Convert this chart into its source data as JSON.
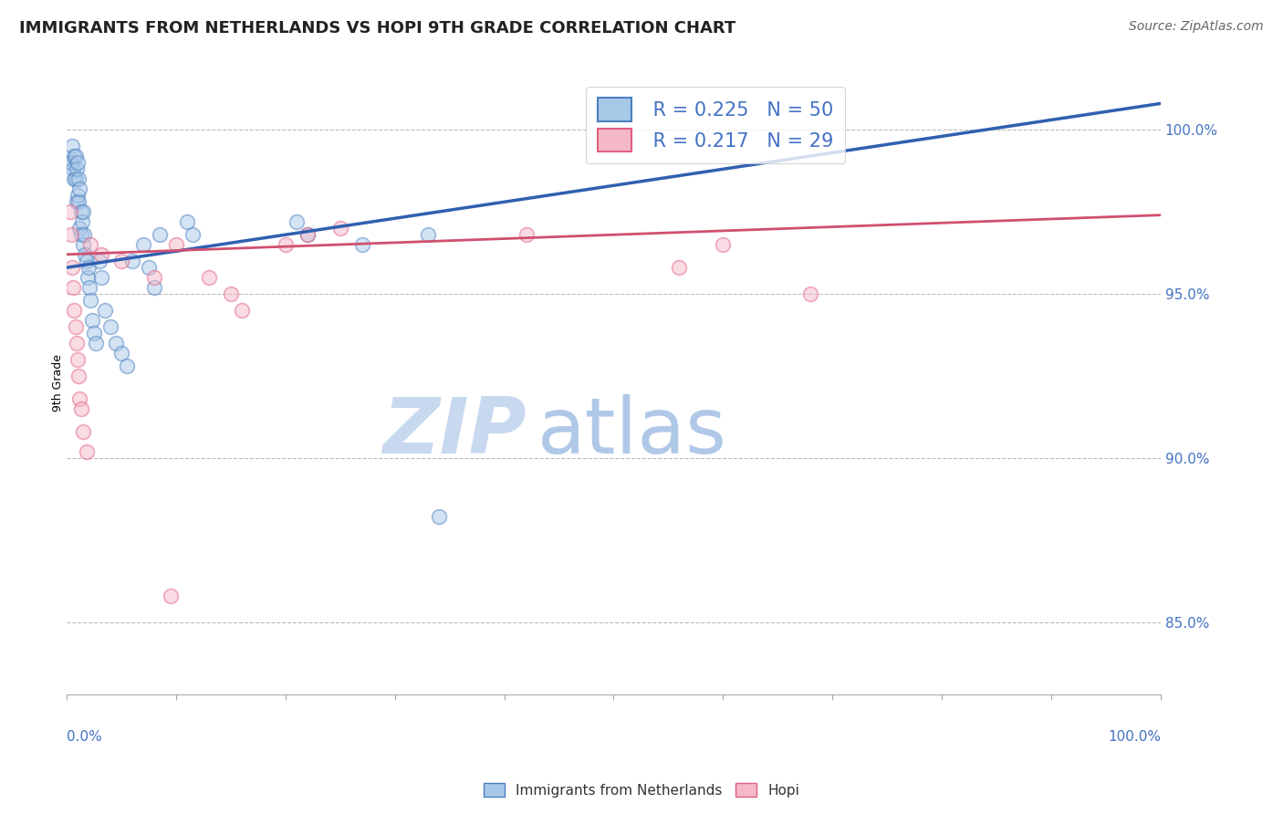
{
  "title": "IMMIGRANTS FROM NETHERLANDS VS HOPI 9TH GRADE CORRELATION CHART",
  "source": "Source: ZipAtlas.com",
  "ylabel": "9th Grade",
  "ylabel_right_labels": [
    "100.0%",
    "95.0%",
    "90.0%",
    "85.0%"
  ],
  "ylabel_right_values": [
    1.0,
    0.95,
    0.9,
    0.85
  ],
  "xmin": 0.0,
  "xmax": 1.0,
  "ymin": 0.828,
  "ymax": 1.018,
  "watermark_zip": "ZIP",
  "watermark_atlas": "atlas",
  "legend_r_blue": "0.225",
  "legend_n_blue": "50",
  "legend_r_pink": "0.217",
  "legend_n_pink": "29",
  "blue_face_color": "#a8c8e8",
  "blue_edge_color": "#4a7fc0",
  "pink_face_color": "#f5b8c8",
  "pink_edge_color": "#e06080",
  "blue_line_color": "#3060b0",
  "pink_line_color": "#d05070",
  "blue_trend_x0": 0.0,
  "blue_trend_x1": 1.0,
  "blue_trend_y0": 0.958,
  "blue_trend_y1": 1.008,
  "pink_trend_x0": 0.0,
  "pink_trend_x1": 1.0,
  "pink_trend_y0": 0.962,
  "pink_trend_y1": 0.974,
  "blue_scatter_x": [
    0.003,
    0.004,
    0.005,
    0.006,
    0.007,
    0.007,
    0.008,
    0.008,
    0.009,
    0.009,
    0.01,
    0.01,
    0.011,
    0.011,
    0.012,
    0.012,
    0.013,
    0.013,
    0.014,
    0.015,
    0.015,
    0.016,
    0.017,
    0.018,
    0.019,
    0.02,
    0.021,
    0.022,
    0.023,
    0.025,
    0.027,
    0.03,
    0.032,
    0.035,
    0.04,
    0.045,
    0.05,
    0.055,
    0.06,
    0.07,
    0.075,
    0.08,
    0.085,
    0.11,
    0.115,
    0.21,
    0.22,
    0.27,
    0.33,
    0.34
  ],
  "blue_scatter_y": [
    0.99,
    0.99,
    0.995,
    0.988,
    0.985,
    0.992,
    0.992,
    0.985,
    0.988,
    0.978,
    0.98,
    0.99,
    0.985,
    0.978,
    0.982,
    0.97,
    0.975,
    0.968,
    0.972,
    0.975,
    0.965,
    0.968,
    0.962,
    0.96,
    0.955,
    0.958,
    0.952,
    0.948,
    0.942,
    0.938,
    0.935,
    0.96,
    0.955,
    0.945,
    0.94,
    0.935,
    0.932,
    0.928,
    0.96,
    0.965,
    0.958,
    0.952,
    0.968,
    0.972,
    0.968,
    0.972,
    0.968,
    0.965,
    0.968,
    0.882
  ],
  "pink_scatter_x": [
    0.003,
    0.004,
    0.005,
    0.006,
    0.007,
    0.008,
    0.009,
    0.01,
    0.011,
    0.012,
    0.013,
    0.015,
    0.018,
    0.022,
    0.032,
    0.05,
    0.08,
    0.095,
    0.1,
    0.13,
    0.15,
    0.16,
    0.2,
    0.22,
    0.25,
    0.42,
    0.56,
    0.6,
    0.68
  ],
  "pink_scatter_y": [
    0.975,
    0.968,
    0.958,
    0.952,
    0.945,
    0.94,
    0.935,
    0.93,
    0.925,
    0.918,
    0.915,
    0.908,
    0.902,
    0.965,
    0.962,
    0.96,
    0.955,
    0.858,
    0.965,
    0.955,
    0.95,
    0.945,
    0.965,
    0.968,
    0.97,
    0.968,
    0.958,
    0.965,
    0.95
  ],
  "grid_color": "#bbbbbb",
  "background_color": "#ffffff",
  "title_fontsize": 13,
  "axis_label_fontsize": 9,
  "tick_fontsize": 11,
  "legend_fontsize": 15,
  "source_fontsize": 10,
  "watermark_fontsize_zip": 62,
  "watermark_fontsize_atlas": 62,
  "watermark_color_zip": "#c8d8ef",
  "watermark_color_atlas": "#b0c8e8",
  "scatter_size": 130,
  "scatter_alpha": 0.5,
  "scatter_linewidth": 1.2
}
